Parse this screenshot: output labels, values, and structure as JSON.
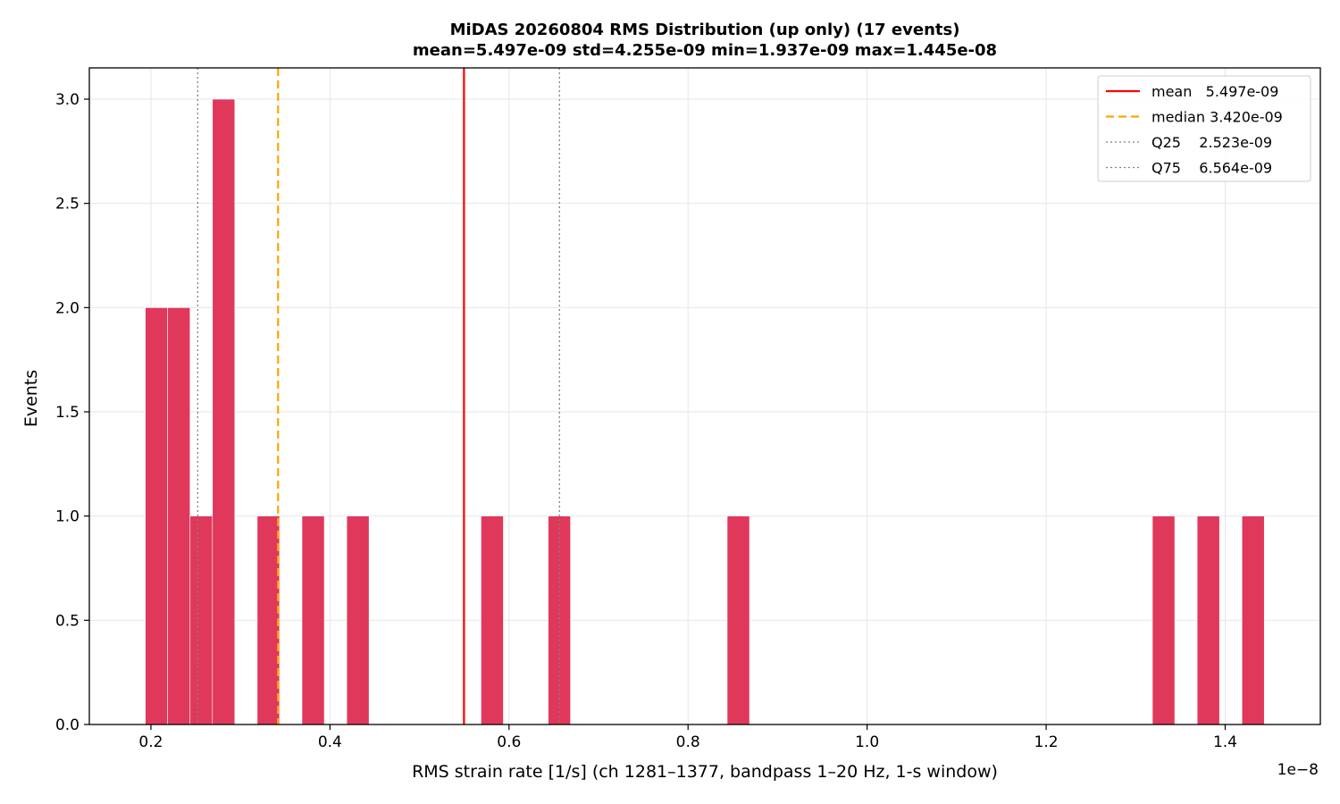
{
  "chart_data": {
    "type": "bar",
    "title": "MiDAS 20260804  RMS Distribution  (up only)  (17 events)",
    "subtitle": "mean=5.497e-09  std=4.255e-09  min=1.937e-09  max=1.445e-08",
    "xlabel": "RMS strain rate [1/s]  (ch 1281–1377, bandpass 1–20 Hz, 1-s window)",
    "ylabel": "Events",
    "x_offset_label": "1e−8",
    "xlim": [
      0.1312,
      1.5063
    ],
    "ylim": [
      0,
      3.15
    ],
    "grid": true,
    "x_ticks": [
      0.2,
      0.4,
      0.6,
      0.8,
      1.0,
      1.2,
      1.4
    ],
    "x_tick_labels": [
      "0.2",
      "0.4",
      "0.6",
      "0.8",
      "1.0",
      "1.2",
      "1.4"
    ],
    "y_ticks": [
      0.0,
      0.5,
      1.0,
      1.5,
      2.0,
      2.5,
      3.0
    ],
    "y_tick_labels": [
      "0.0",
      "0.5",
      "1.0",
      "1.5",
      "2.0",
      "2.5",
      "3.0"
    ],
    "bin_width": 0.025,
    "bars": [
      {
        "x0": 0.1937,
        "count": 2
      },
      {
        "x0": 0.2187,
        "count": 2
      },
      {
        "x0": 0.2437,
        "count": 1
      },
      {
        "x0": 0.2687,
        "count": 3
      },
      {
        "x0": 0.3187,
        "count": 1
      },
      {
        "x0": 0.3687,
        "count": 1
      },
      {
        "x0": 0.4187,
        "count": 1
      },
      {
        "x0": 0.5687,
        "count": 1
      },
      {
        "x0": 0.6437,
        "count": 1
      },
      {
        "x0": 0.8437,
        "count": 1
      },
      {
        "x0": 1.3187,
        "count": 1
      },
      {
        "x0": 1.3687,
        "count": 1
      },
      {
        "x0": 1.4187,
        "count": 1
      }
    ],
    "bar_color": "#e0385a",
    "reference_lines": [
      {
        "name": "mean",
        "label": "mean   5.497e-09",
        "x": 0.5497,
        "color": "#ff0000",
        "style": "solid"
      },
      {
        "name": "median",
        "label": "median 3.420e-09",
        "x": 0.342,
        "color": "#ffa500",
        "style": "dashed"
      },
      {
        "name": "Q25",
        "label": "Q25    2.523e-09",
        "x": 0.2523,
        "color": "#808080",
        "style": "dotted"
      },
      {
        "name": "Q75",
        "label": "Q75    6.564e-09",
        "x": 0.6564,
        "color": "#808080",
        "style": "dotted"
      }
    ],
    "legend_position": "top-right"
  }
}
